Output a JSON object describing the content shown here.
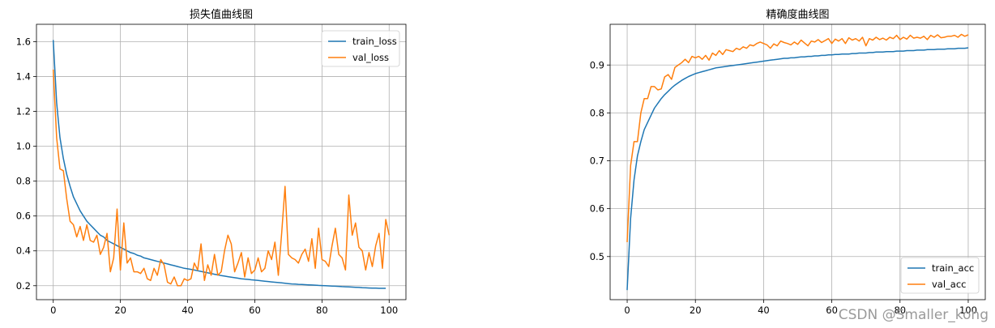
{
  "chart_data": [
    {
      "type": "line",
      "title": "损失值曲线图",
      "xlim": [
        -5,
        105
      ],
      "ylim": [
        0.12,
        1.7
      ],
      "xticks": [
        0,
        20,
        40,
        60,
        80,
        100
      ],
      "yticks": [
        0.2,
        0.4,
        0.6,
        0.8,
        1.0,
        1.2,
        1.4,
        1.6
      ],
      "ytick_labels": [
        "0.2",
        "0.4",
        "0.6",
        "0.8",
        "1.0",
        "1.2",
        "1.4",
        "1.6"
      ],
      "grid": true,
      "legend_position": "top-right",
      "series": [
        {
          "name": "train_loss",
          "color": "#1f77b4",
          "values": [
            1.61,
            1.25,
            1.05,
            0.93,
            0.84,
            0.77,
            0.71,
            0.67,
            0.63,
            0.6,
            0.57,
            0.55,
            0.53,
            0.51,
            0.49,
            0.48,
            0.46,
            0.45,
            0.44,
            0.43,
            0.42,
            0.41,
            0.4,
            0.39,
            0.385,
            0.375,
            0.37,
            0.36,
            0.355,
            0.35,
            0.345,
            0.34,
            0.335,
            0.33,
            0.325,
            0.32,
            0.315,
            0.31,
            0.305,
            0.3,
            0.297,
            0.294,
            0.29,
            0.286,
            0.282,
            0.278,
            0.274,
            0.27,
            0.266,
            0.262,
            0.258,
            0.255,
            0.252,
            0.249,
            0.246,
            0.243,
            0.24,
            0.238,
            0.236,
            0.234,
            0.232,
            0.23,
            0.228,
            0.226,
            0.224,
            0.222,
            0.22,
            0.218,
            0.216,
            0.214,
            0.212,
            0.21,
            0.209,
            0.208,
            0.207,
            0.206,
            0.205,
            0.204,
            0.203,
            0.202,
            0.201,
            0.2,
            0.199,
            0.198,
            0.197,
            0.196,
            0.195,
            0.194,
            0.193,
            0.192,
            0.191,
            0.19,
            0.189,
            0.188,
            0.187,
            0.186,
            0.186,
            0.185,
            0.185,
            0.185
          ]
        },
        {
          "name": "val_loss",
          "color": "#ff7f0e",
          "values": [
            1.44,
            1.05,
            0.87,
            0.86,
            0.7,
            0.57,
            0.55,
            0.48,
            0.54,
            0.46,
            0.55,
            0.46,
            0.45,
            0.49,
            0.38,
            0.42,
            0.5,
            0.28,
            0.36,
            0.64,
            0.29,
            0.56,
            0.33,
            0.36,
            0.28,
            0.28,
            0.27,
            0.3,
            0.24,
            0.23,
            0.3,
            0.26,
            0.35,
            0.32,
            0.22,
            0.21,
            0.25,
            0.2,
            0.2,
            0.24,
            0.23,
            0.24,
            0.33,
            0.29,
            0.44,
            0.23,
            0.32,
            0.26,
            0.38,
            0.26,
            0.28,
            0.4,
            0.49,
            0.44,
            0.28,
            0.33,
            0.39,
            0.25,
            0.36,
            0.27,
            0.29,
            0.36,
            0.28,
            0.3,
            0.4,
            0.35,
            0.45,
            0.26,
            0.5,
            0.77,
            0.38,
            0.36,
            0.35,
            0.33,
            0.38,
            0.41,
            0.34,
            0.47,
            0.3,
            0.53,
            0.35,
            0.34,
            0.31,
            0.43,
            0.53,
            0.38,
            0.36,
            0.29,
            0.72,
            0.49,
            0.56,
            0.42,
            0.4,
            0.29,
            0.39,
            0.31,
            0.43,
            0.5,
            0.3,
            0.58,
            0.49
          ]
        }
      ]
    },
    {
      "type": "line",
      "title": "精确度曲线图",
      "xlim": [
        -5,
        105
      ],
      "ylim": [
        0.41,
        0.985
      ],
      "xticks": [
        0,
        20,
        40,
        60,
        80,
        100
      ],
      "yticks": [
        0.5,
        0.6,
        0.7,
        0.8,
        0.9
      ],
      "ytick_labels": [
        "0.5",
        "0.6",
        "0.7",
        "0.8",
        "0.9"
      ],
      "grid": true,
      "legend_position": "bottom-right",
      "series": [
        {
          "name": "train_acc",
          "color": "#1f77b4",
          "values": [
            0.43,
            0.58,
            0.66,
            0.71,
            0.74,
            0.765,
            0.78,
            0.795,
            0.81,
            0.82,
            0.83,
            0.838,
            0.845,
            0.852,
            0.858,
            0.863,
            0.868,
            0.872,
            0.876,
            0.879,
            0.882,
            0.884,
            0.886,
            0.888,
            0.89,
            0.892,
            0.894,
            0.895,
            0.896,
            0.897,
            0.898,
            0.899,
            0.9,
            0.901,
            0.902,
            0.903,
            0.904,
            0.905,
            0.906,
            0.907,
            0.908,
            0.909,
            0.91,
            0.911,
            0.912,
            0.913,
            0.914,
            0.914,
            0.915,
            0.915,
            0.916,
            0.917,
            0.917,
            0.918,
            0.918,
            0.919,
            0.919,
            0.92,
            0.92,
            0.921,
            0.921,
            0.922,
            0.922,
            0.923,
            0.923,
            0.923,
            0.924,
            0.924,
            0.925,
            0.925,
            0.925,
            0.926,
            0.926,
            0.927,
            0.927,
            0.927,
            0.928,
            0.928,
            0.928,
            0.929,
            0.929,
            0.929,
            0.93,
            0.93,
            0.93,
            0.931,
            0.931,
            0.931,
            0.932,
            0.932,
            0.932,
            0.933,
            0.933,
            0.933,
            0.934,
            0.934,
            0.934,
            0.935,
            0.935,
            0.935,
            0.936
          ]
        },
        {
          "name": "val_acc",
          "color": "#ff7f0e",
          "values": [
            0.53,
            0.69,
            0.74,
            0.74,
            0.8,
            0.83,
            0.83,
            0.855,
            0.855,
            0.848,
            0.85,
            0.875,
            0.88,
            0.87,
            0.895,
            0.9,
            0.905,
            0.912,
            0.905,
            0.918,
            0.915,
            0.918,
            0.912,
            0.92,
            0.91,
            0.925,
            0.92,
            0.93,
            0.922,
            0.932,
            0.93,
            0.928,
            0.935,
            0.932,
            0.938,
            0.935,
            0.942,
            0.94,
            0.945,
            0.948,
            0.945,
            0.942,
            0.935,
            0.944,
            0.94,
            0.95,
            0.947,
            0.945,
            0.942,
            0.948,
            0.943,
            0.952,
            0.946,
            0.94,
            0.95,
            0.948,
            0.953,
            0.947,
            0.951,
            0.955,
            0.945,
            0.954,
            0.95,
            0.955,
            0.945,
            0.957,
            0.952,
            0.955,
            0.95,
            0.958,
            0.94,
            0.955,
            0.952,
            0.958,
            0.953,
            0.956,
            0.952,
            0.958,
            0.955,
            0.962,
            0.953,
            0.958,
            0.954,
            0.962,
            0.956,
            0.958,
            0.956,
            0.96,
            0.953,
            0.962,
            0.958,
            0.963,
            0.957,
            0.958,
            0.96,
            0.96,
            0.962,
            0.958,
            0.964,
            0.96,
            0.963
          ]
        }
      ]
    }
  ],
  "watermark": "CSDN @Smaller_kong"
}
